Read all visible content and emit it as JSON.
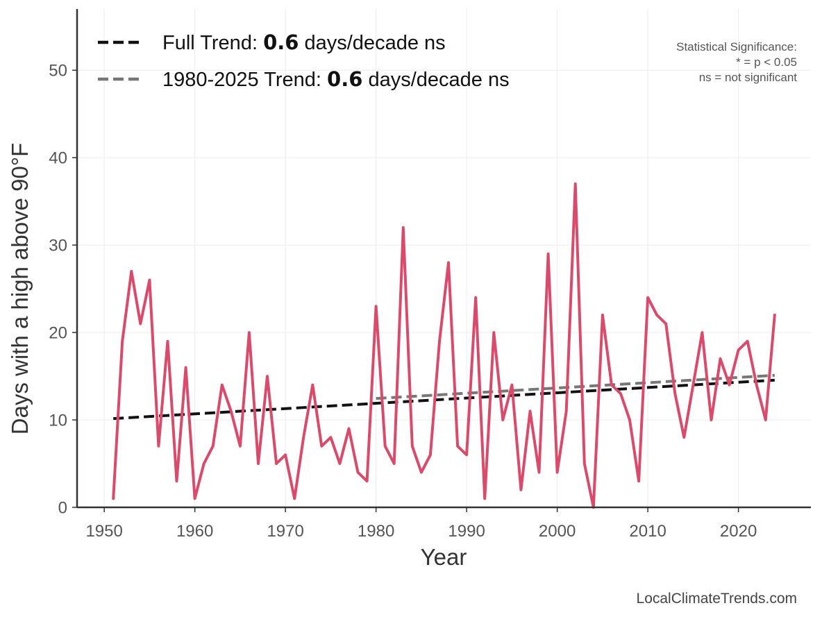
{
  "chart_data": {
    "type": "line",
    "xlabel": "Year",
    "ylabel": "Days with a high above 90°F",
    "xlim": [
      1947,
      2028
    ],
    "ylim": [
      0,
      57
    ],
    "grid": true,
    "x_ticks": [
      1950,
      1960,
      1970,
      1980,
      1990,
      2000,
      2010,
      2020
    ],
    "y_ticks": [
      0,
      10,
      20,
      30,
      40,
      50
    ],
    "legend_position": "top-left",
    "series": [
      {
        "x": [
          1951,
          1952,
          1953,
          1954,
          1955,
          1956,
          1957,
          1958,
          1959,
          1960,
          1961,
          1962,
          1963,
          1964,
          1965,
          1966,
          1967,
          1968,
          1969,
          1970,
          1971,
          1972,
          1973,
          1974,
          1975,
          1976,
          1977,
          1978,
          1979,
          1980,
          1981,
          1982,
          1983,
          1984,
          1985,
          1986,
          1987,
          1988,
          1989,
          1990,
          1991,
          1992,
          1993,
          1994,
          1995,
          1996,
          1997,
          1998,
          1999,
          2000,
          2001,
          2002,
          2003,
          2004,
          2005,
          2006,
          2007,
          2008,
          2009,
          2010,
          2011,
          2012,
          2013,
          2014,
          2015,
          2016,
          2017,
          2018,
          2019,
          2020,
          2021,
          2022,
          2023,
          2024
        ],
        "values": [
          1,
          19,
          27,
          21,
          26,
          7,
          19,
          3,
          16,
          1,
          5,
          7,
          14,
          11,
          7,
          20,
          5,
          15,
          5,
          6,
          1,
          8,
          14,
          7,
          8,
          5,
          9,
          4,
          3,
          23,
          7,
          5,
          32,
          7,
          4,
          6,
          19,
          28,
          7,
          6,
          24,
          1,
          20,
          10,
          14,
          2,
          11,
          4,
          29,
          4,
          11,
          37,
          5,
          0,
          22,
          14,
          13,
          10,
          3,
          24,
          22,
          21,
          13,
          8,
          14,
          20,
          10,
          17,
          14,
          18,
          19,
          14,
          10,
          22
        ],
        "color": "#dc4a6b"
      }
    ],
    "trends": [
      {
        "label_prefix": "Full Trend: ",
        "label_bold": "0.6",
        "label_suffix": " days/decade ns",
        "x": [
          1951,
          2024
        ],
        "y": [
          10.15,
          14.55
        ],
        "color": "#111111"
      },
      {
        "label_prefix": "1980-2025 Trend: ",
        "label_bold": "0.6",
        "label_suffix": " days/decade ns",
        "x": [
          1980,
          2024
        ],
        "y": [
          12.45,
          15.1
        ],
        "color": "#777777"
      }
    ],
    "annotation": {
      "lines": [
        "Statistical Significance:",
        "* = p < 0.05",
        "ns = not significant"
      ],
      "position": "top-right"
    },
    "credit": "LocalClimateTrends.com"
  }
}
